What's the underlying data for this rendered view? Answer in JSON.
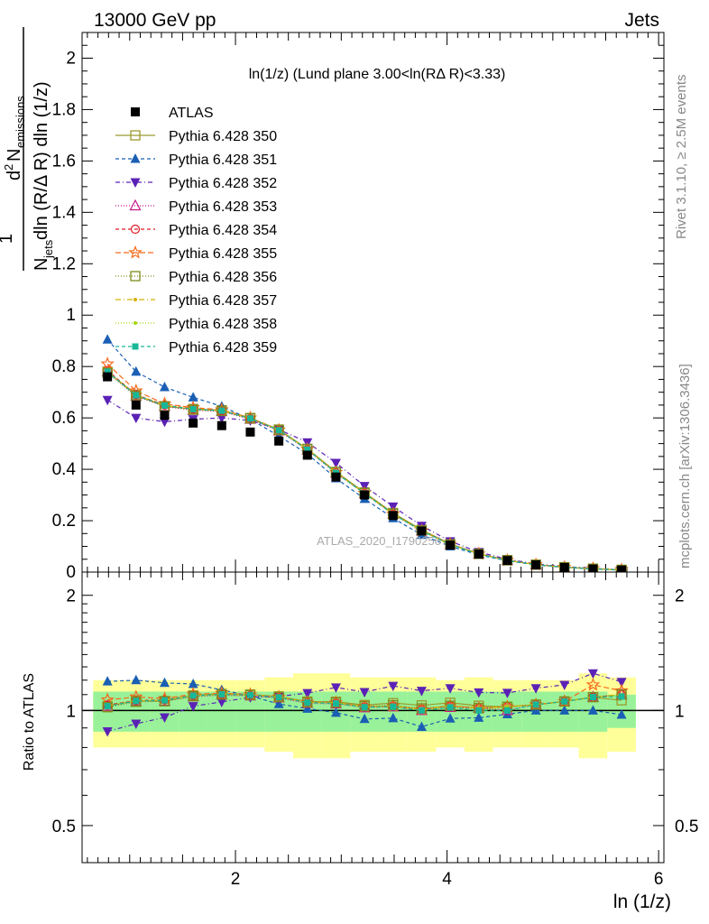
{
  "header": {
    "energy": "13000 GeV pp",
    "category": "Jets",
    "side_events": "Rivet 3.1.10, ≥ 2.5M events",
    "side_source": "mcplots.cern.ch [arXiv:1306.3436]",
    "watermark": "ATLAS_2020_I1790256"
  },
  "chart_data": {
    "type": "scatter",
    "title": "ln(1/z) (Lund plane 3.00<ln(RΔ R)<3.33)",
    "xlabel": "ln (1/z)",
    "ylabel_parts": {
      "one": "1",
      "d2": "d",
      "sup2": "2",
      "N": "N",
      "emissions": "emissions",
      "njets_N": "N",
      "jets": "jets",
      "rest": "dln (R/Δ R) dln (1/z)"
    },
    "ratio_ylabel": "Ratio to ATLAS",
    "xlim": [
      0.55,
      6.05
    ],
    "ylim": [
      0,
      2.1
    ],
    "ratio_ylim": [
      0.4,
      2.3
    ],
    "x_ticks": [
      "2",
      "4",
      "6"
    ],
    "y_ticks": [
      "0",
      "0.2",
      "0.4",
      "0.6",
      "0.8",
      "1",
      "1.2",
      "1.4",
      "1.6",
      "1.8",
      "2"
    ],
    "ratio_ticks": [
      "0.5",
      "1",
      "2"
    ],
    "x": [
      0.79,
      1.06,
      1.33,
      1.6,
      1.87,
      2.14,
      2.41,
      2.68,
      2.95,
      3.22,
      3.49,
      3.76,
      4.03,
      4.3,
      4.57,
      4.84,
      5.11,
      5.38,
      5.65
    ],
    "bands": {
      "inner": [
        0.12,
        0.12,
        0.12,
        0.12,
        0.12,
        0.12,
        0.12,
        0.12,
        0.12,
        0.12,
        0.12,
        0.12,
        0.12,
        0.12,
        0.12,
        0.12,
        0.12,
        0.12,
        0.1
      ],
      "outer": [
        0.2,
        0.2,
        0.2,
        0.2,
        0.2,
        0.2,
        0.22,
        0.25,
        0.25,
        0.22,
        0.22,
        0.22,
        0.2,
        0.22,
        0.2,
        0.2,
        0.2,
        0.25,
        0.22
      ]
    },
    "series": [
      {
        "name": "ATLAS",
        "color": "#000000",
        "marker": "filled-square",
        "dash": "none",
        "values": [
          0.76,
          0.65,
          0.61,
          0.58,
          0.57,
          0.545,
          0.51,
          0.455,
          0.37,
          0.3,
          0.22,
          0.16,
          0.105,
          0.07,
          0.045,
          0.028,
          0.018,
          0.012,
          0.008
        ]
      },
      {
        "name": "Pythia 6.428 350",
        "color": "#9a9a2f",
        "marker": "open-square",
        "dash": "none",
        "values": [
          0.78,
          0.69,
          0.645,
          0.635,
          0.63,
          0.6,
          0.555,
          0.48,
          0.39,
          0.31,
          0.23,
          0.165,
          0.11,
          0.072,
          0.046,
          0.029,
          0.019,
          0.013,
          0.0085
        ]
      },
      {
        "name": "Pythia 6.428 351",
        "color": "#1a5fb4",
        "marker": "filled-triangle-up",
        "dash": "4,3",
        "values": [
          0.905,
          0.78,
          0.72,
          0.68,
          0.645,
          0.595,
          0.53,
          0.46,
          0.365,
          0.285,
          0.21,
          0.145,
          0.1,
          0.067,
          0.044,
          0.028,
          0.018,
          0.012,
          0.0078
        ]
      },
      {
        "name": "Pythia 6.428 352",
        "color": "#5b21b6",
        "marker": "filled-triangle-down",
        "dash": "5,3,1,3",
        "values": [
          0.67,
          0.6,
          0.585,
          0.595,
          0.6,
          0.59,
          0.555,
          0.505,
          0.425,
          0.335,
          0.255,
          0.18,
          0.12,
          0.078,
          0.05,
          0.032,
          0.021,
          0.015,
          0.0095
        ]
      },
      {
        "name": "Pythia 6.428 353",
        "color": "#c2188a",
        "marker": "open-triangle-up",
        "dash": "1,2",
        "values": [
          0.78,
          0.685,
          0.645,
          0.63,
          0.625,
          0.595,
          0.55,
          0.475,
          0.385,
          0.305,
          0.225,
          0.16,
          0.107,
          0.071,
          0.045,
          0.029,
          0.019,
          0.013,
          0.0088
        ]
      },
      {
        "name": "Pythia 6.428 354",
        "color": "#e01b24",
        "marker": "open-circle",
        "dash": "4,3",
        "values": [
          0.785,
          0.69,
          0.65,
          0.635,
          0.628,
          0.597,
          0.552,
          0.477,
          0.387,
          0.307,
          0.226,
          0.161,
          0.108,
          0.071,
          0.046,
          0.029,
          0.019,
          0.013,
          0.0088
        ]
      },
      {
        "name": "Pythia 6.428 355",
        "color": "#f66a1a",
        "marker": "open-star",
        "dash": "6,3",
        "values": [
          0.81,
          0.705,
          0.655,
          0.64,
          0.632,
          0.6,
          0.553,
          0.478,
          0.388,
          0.307,
          0.226,
          0.161,
          0.108,
          0.071,
          0.046,
          0.029,
          0.019,
          0.014,
          0.009
        ]
      },
      {
        "name": "Pythia 6.428 356",
        "color": "#7d8a1a",
        "marker": "open-square",
        "dash": "1,2",
        "values": [
          0.775,
          0.685,
          0.645,
          0.632,
          0.627,
          0.598,
          0.553,
          0.478,
          0.388,
          0.308,
          0.227,
          0.162,
          0.108,
          0.071,
          0.046,
          0.029,
          0.019,
          0.013,
          0.0088
        ]
      },
      {
        "name": "Pythia 6.428 357",
        "color": "#d4b000",
        "marker": "small-dot",
        "dash": "6,3,1,3",
        "values": [
          0.78,
          0.688,
          0.648,
          0.633,
          0.628,
          0.598,
          0.553,
          0.478,
          0.388,
          0.307,
          0.226,
          0.161,
          0.108,
          0.071,
          0.046,
          0.029,
          0.019,
          0.013,
          0.0088
        ]
      },
      {
        "name": "Pythia 6.428 358",
        "color": "#a5d610",
        "marker": "small-dot",
        "dash": "1,2",
        "values": [
          0.782,
          0.69,
          0.65,
          0.635,
          0.629,
          0.599,
          0.553,
          0.478,
          0.387,
          0.306,
          0.226,
          0.16,
          0.107,
          0.07,
          0.046,
          0.029,
          0.019,
          0.013,
          0.0088
        ]
      },
      {
        "name": "Pythia 6.428 359",
        "color": "#17b898",
        "marker": "filled-square-small",
        "dash": "4,3",
        "values": [
          0.78,
          0.688,
          0.648,
          0.634,
          0.628,
          0.598,
          0.552,
          0.477,
          0.386,
          0.306,
          0.225,
          0.16,
          0.107,
          0.07,
          0.045,
          0.029,
          0.019,
          0.013,
          0.0087
        ]
      }
    ]
  }
}
